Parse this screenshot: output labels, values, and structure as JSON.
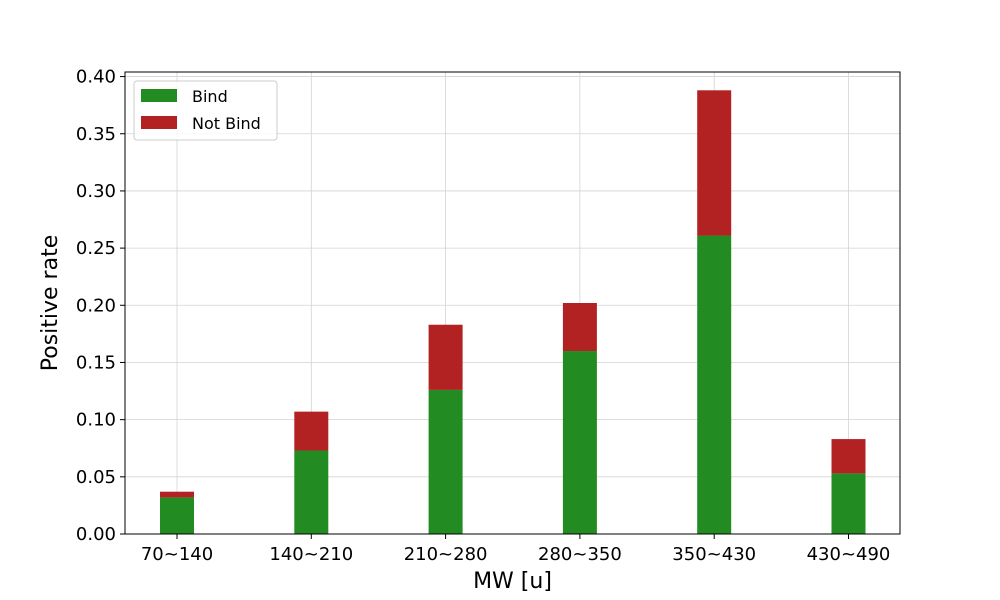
{
  "chart_data": {
    "type": "bar",
    "stacked": true,
    "categories": [
      "70~140",
      "140~210",
      "210~280",
      "280~350",
      "350~430",
      "430~490"
    ],
    "series": [
      {
        "name": "Bind",
        "values": [
          0.032,
          0.073,
          0.126,
          0.16,
          0.261,
          0.053
        ],
        "color": "#228b22"
      },
      {
        "name": "Not Bind",
        "values": [
          0.005,
          0.034,
          0.057,
          0.042,
          0.127,
          0.03
        ],
        "color": "#b22222"
      }
    ],
    "xlabel": "MW [u]",
    "ylabel": "Positive rate",
    "ylim": [
      0,
      0.404
    ],
    "yticks": [
      "0.00",
      "0.05",
      "0.10",
      "0.15",
      "0.20",
      "0.25",
      "0.30",
      "0.35",
      "0.40"
    ],
    "ytick_values": [
      0,
      0.05,
      0.1,
      0.15,
      0.2,
      0.25,
      0.3,
      0.35,
      0.4
    ],
    "grid": true,
    "legend_position": "top-left"
  }
}
